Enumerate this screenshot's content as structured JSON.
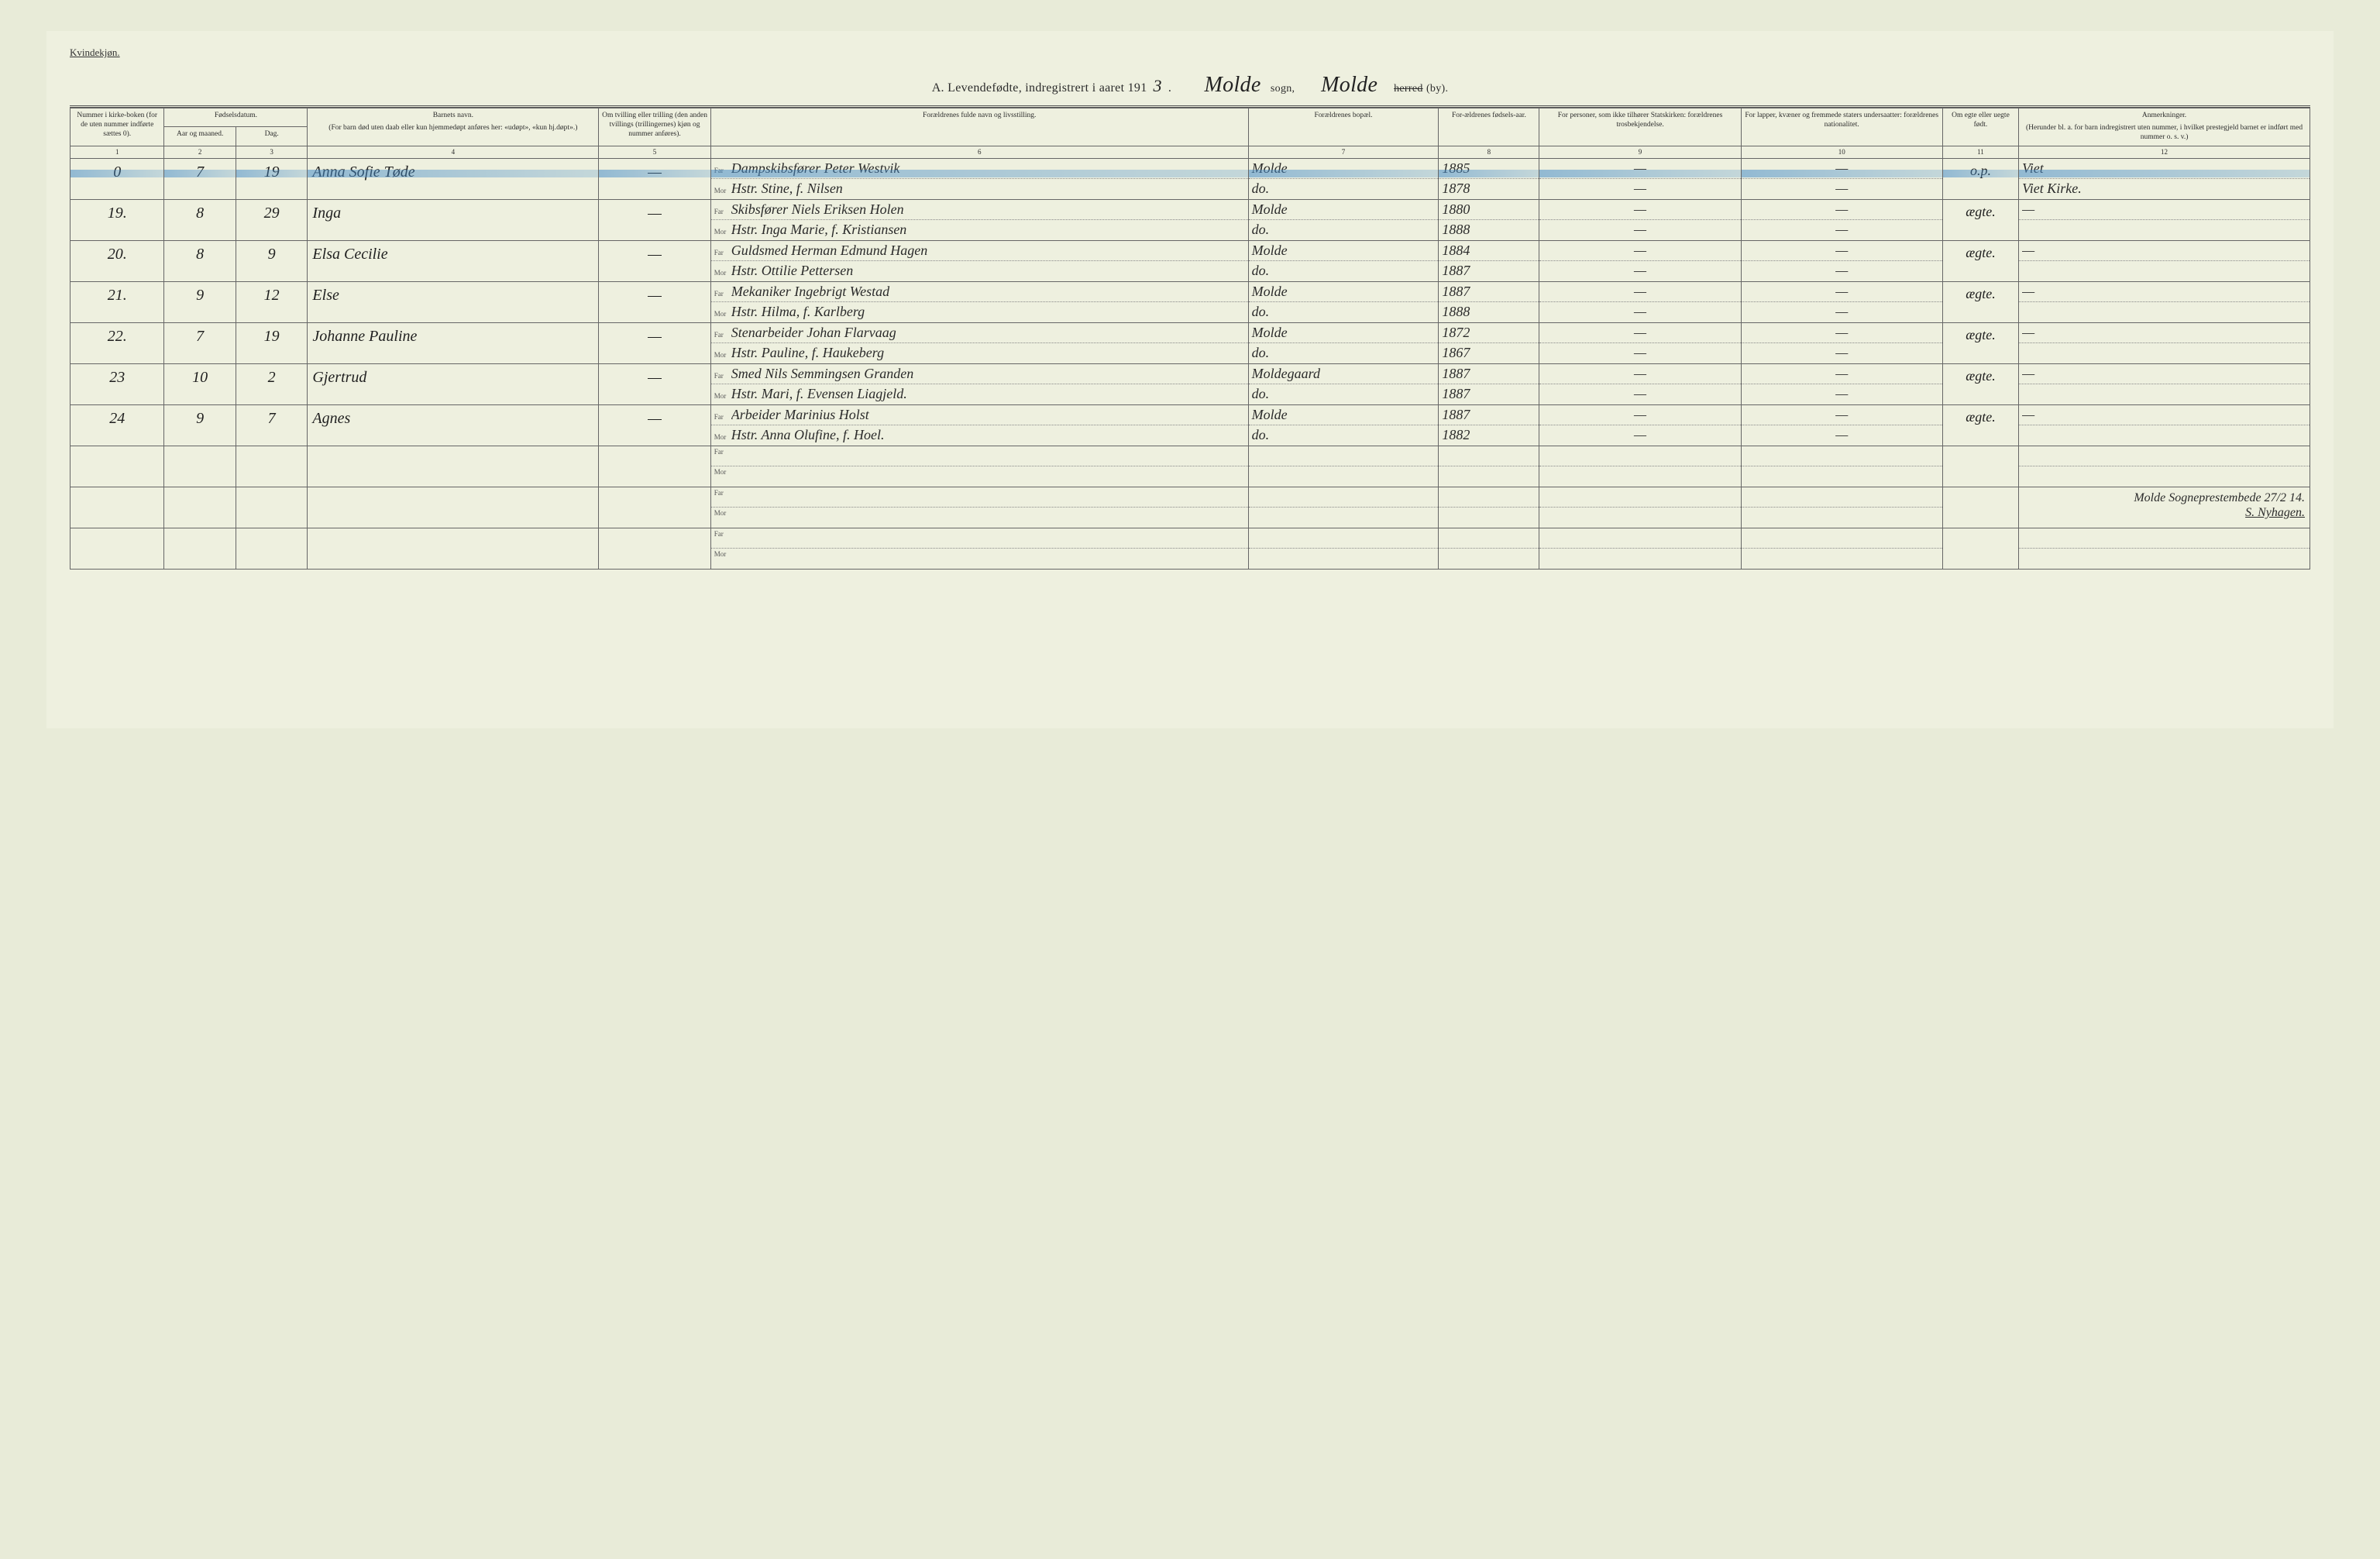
{
  "labels": {
    "gender_header": "Kvindekjøn.",
    "title_prefix": "A.  Levendefødte, indregistrert i aaret 191",
    "year_suffix": "3",
    "title_dot": ".",
    "sogn_word": "sogn,",
    "herred_struck": "herred",
    "by_word": "(by).",
    "sogn_value": "Molde",
    "herred_value": "Molde",
    "far_label": "Far",
    "mor_label": "Mor"
  },
  "headers": {
    "c1": "Nummer i kirke-boken (for de uten nummer indførte sættes 0).",
    "c2a": "Fødselsdatum.",
    "c2": "Aar og maaned.",
    "c3": "Dag.",
    "c4a": "Barnets navn.",
    "c4b": "(For barn død uten daab eller kun hjemmedøpt anføres her: «udøpt», «kun hj.døpt».)",
    "c5": "Om tvilling eller trilling (den anden tvillings (trillingernes) kjøn og nummer anføres).",
    "c6": "Forældrenes fulde navn og livsstilling.",
    "c7": "Forældrenes bopæl.",
    "c8": "For-ældrenes fødsels-aar.",
    "c9": "For personer, som ikke tilhører Statskirken: forældrenes trosbekjendelse.",
    "c10": "For lapper, kvæner og fremmede staters undersaatter: forældrenes nationalitet.",
    "c11": "Om egte eller uegte født.",
    "c12a": "Anmerkninger.",
    "c12b": "(Herunder bl. a. for barn indregistrert uten nummer, i hvilket prestegjeld barnet er indført med nummer o. s. v.)"
  },
  "colnums": [
    "1",
    "2",
    "3",
    "4",
    "5",
    "6",
    "7",
    "8",
    "9",
    "10",
    "11",
    "12"
  ],
  "rows": [
    {
      "num": "0",
      "month": "7",
      "day": "19",
      "name": "Anna Sofie Tøde",
      "twin": "—",
      "far": "Dampskibsfører Peter Westvik",
      "mor": "Hstr. Stine, f. Nilsen",
      "bopel_f": "Molde",
      "bopel_m": "do.",
      "year_f": "1885",
      "year_m": "1878",
      "c9_f": "—",
      "c9_m": "—",
      "c10_f": "—",
      "c10_m": "—",
      "egte": "o.p.",
      "rem_f": "Viet",
      "rem_m": "Viet Kirke.",
      "blue": true
    },
    {
      "num": "19.",
      "month": "8",
      "day": "29",
      "name": "Inga",
      "twin": "—",
      "far": "Skibsfører Niels Eriksen Holen",
      "mor": "Hstr. Inga Marie, f. Kristiansen",
      "bopel_f": "Molde",
      "bopel_m": "do.",
      "year_f": "1880",
      "year_m": "1888",
      "c9_f": "—",
      "c9_m": "—",
      "c10_f": "—",
      "c10_m": "—",
      "egte": "ægte.",
      "rem_f": "—",
      "rem_m": ""
    },
    {
      "num": "20.",
      "month": "8",
      "day": "9",
      "name": "Elsa Cecilie",
      "twin": "—",
      "far": "Guldsmed Herman Edmund Hagen",
      "mor": "Hstr. Ottilie Pettersen",
      "bopel_f": "Molde",
      "bopel_m": "do.",
      "year_f": "1884",
      "year_m": "1887",
      "c9_f": "—",
      "c9_m": "—",
      "c10_f": "—",
      "c10_m": "—",
      "egte": "ægte.",
      "rem_f": "—",
      "rem_m": ""
    },
    {
      "num": "21.",
      "month": "9",
      "day": "12",
      "name": "Else",
      "twin": "—",
      "far": "Mekaniker Ingebrigt Westad",
      "mor": "Hstr. Hilma, f. Karlberg",
      "bopel_f": "Molde",
      "bopel_m": "do.",
      "year_f": "1887",
      "year_m": "1888",
      "c9_f": "—",
      "c9_m": "—",
      "c10_f": "—",
      "c10_m": "—",
      "egte": "ægte.",
      "rem_f": "—",
      "rem_m": ""
    },
    {
      "num": "22.",
      "month": "7",
      "day": "19",
      "name": "Johanne Pauline",
      "twin": "—",
      "far": "Stenarbeider Johan Flarvaag",
      "mor": "Hstr. Pauline, f. Haukeberg",
      "bopel_f": "Molde",
      "bopel_m": "do.",
      "year_f": "1872",
      "year_m": "1867",
      "c9_f": "—",
      "c9_m": "—",
      "c10_f": "—",
      "c10_m": "—",
      "egte": "ægte.",
      "rem_f": "—",
      "rem_m": ""
    },
    {
      "num": "23",
      "month": "10",
      "day": "2",
      "name": "Gjertrud",
      "twin": "—",
      "far": "Smed Nils Semmingsen Granden",
      "mor": "Hstr. Mari, f. Evensen Liagjeld.",
      "bopel_f": "Moldegaard",
      "bopel_m": "do.",
      "year_f": "1887",
      "year_m": "1887",
      "c9_f": "—",
      "c9_m": "—",
      "c10_f": "—",
      "c10_m": "—",
      "egte": "ægte.",
      "rem_f": "—",
      "rem_m": ""
    },
    {
      "num": "24",
      "month": "9",
      "day": "7",
      "name": "Agnes",
      "twin": "—",
      "far": "Arbeider Marinius Holst",
      "mor": "Hstr. Anna Olufine, f. Hoel.",
      "bopel_f": "Molde",
      "bopel_m": "do.",
      "year_f": "1887",
      "year_m": "1882",
      "c9_f": "—",
      "c9_m": "—",
      "c10_f": "—",
      "c10_m": "—",
      "egte": "ægte.",
      "rem_f": "—",
      "rem_m": ""
    },
    {
      "num": "",
      "month": "",
      "day": "",
      "name": "",
      "twin": "",
      "far": "",
      "mor": "",
      "bopel_f": "",
      "bopel_m": "",
      "year_f": "",
      "year_m": "",
      "c9_f": "",
      "c9_m": "",
      "c10_f": "",
      "c10_m": "",
      "egte": "",
      "rem_f": "",
      "rem_m": ""
    },
    {
      "num": "",
      "month": "",
      "day": "",
      "name": "",
      "twin": "",
      "far": "",
      "mor": "",
      "bopel_f": "",
      "bopel_m": "",
      "year_f": "",
      "year_m": "",
      "c9_f": "",
      "c9_m": "",
      "c10_f": "",
      "c10_m": "",
      "egte": "",
      "rem_f": "Molde Sogneprestembede 27/2 14.",
      "rem_m": "S. Nyhagen.",
      "signature": true
    },
    {
      "num": "",
      "month": "",
      "day": "",
      "name": "",
      "twin": "",
      "far": "",
      "mor": "",
      "bopel_f": "",
      "bopel_m": "",
      "year_f": "",
      "year_m": "",
      "c9_f": "",
      "c9_m": "",
      "c10_f": "",
      "c10_m": "",
      "egte": "",
      "rem_f": "",
      "rem_m": ""
    }
  ]
}
